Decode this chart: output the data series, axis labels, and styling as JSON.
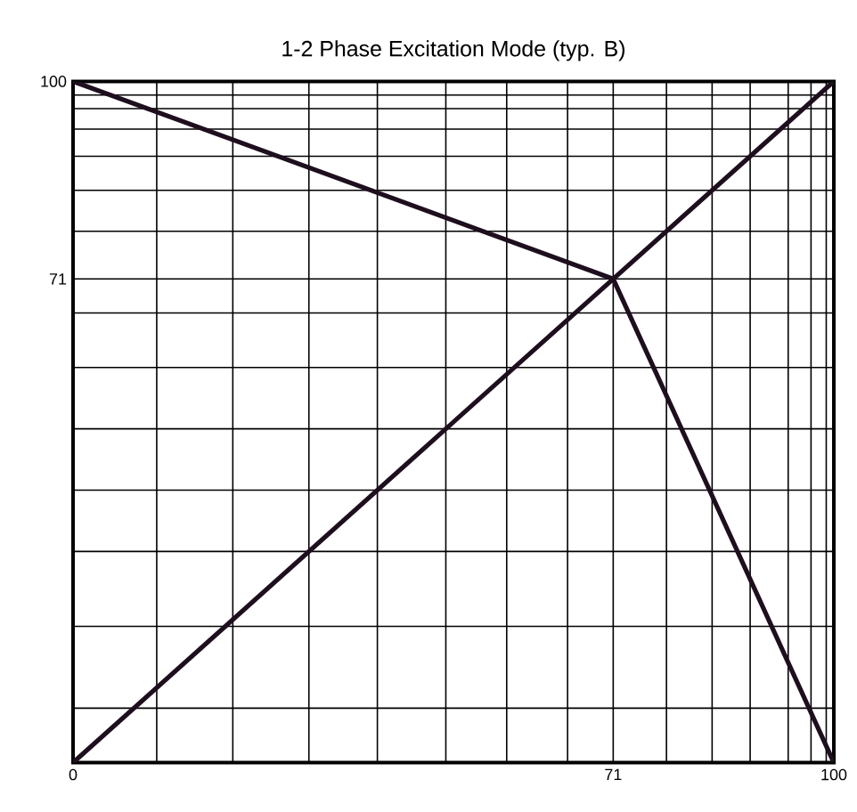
{
  "chart_data": {
    "type": "line",
    "title": "1-2 Phase Excitation Mode    (typ. B)",
    "xlim": [
      0,
      100
    ],
    "ylim": [
      0,
      100
    ],
    "xticks": [
      0,
      {
        "value": 11,
        "label": null
      },
      {
        "value": 21,
        "label": null
      },
      {
        "value": 31,
        "label": null
      },
      {
        "value": 40,
        "label": null
      },
      {
        "value": 49,
        "label": null
      },
      {
        "value": 57,
        "label": null
      },
      {
        "value": 65,
        "label": null
      },
      71,
      {
        "value": 78,
        "label": null
      },
      {
        "value": 84,
        "label": null
      },
      {
        "value": 89,
        "label": null
      },
      {
        "value": 94,
        "label": null
      },
      {
        "value": 97,
        "label": null
      },
      {
        "value": 99,
        "label": null
      },
      100
    ],
    "yticks": [
      {
        "value": 8,
        "label": null
      },
      {
        "value": 20,
        "label": null
      },
      {
        "value": 31,
        "label": null
      },
      {
        "value": 40,
        "label": null
      },
      {
        "value": 49,
        "label": null
      },
      {
        "value": 58,
        "label": null
      },
      {
        "value": 66,
        "label": null
      },
      71,
      {
        "value": 78,
        "label": null
      },
      {
        "value": 84,
        "label": null
      },
      {
        "value": 89,
        "label": null
      },
      {
        "value": 93,
        "label": null
      },
      {
        "value": 96,
        "label": null
      },
      {
        "value": 98,
        "label": null
      },
      100
    ],
    "grid": true,
    "series": [
      {
        "color": "#1e0f1e",
        "x": [
          0,
          71,
          100
        ],
        "values": [
          100,
          71,
          0
        ]
      },
      {
        "color": "#1e0f1e",
        "x": [
          0,
          100
        ],
        "values": [
          0,
          100
        ]
      }
    ]
  }
}
